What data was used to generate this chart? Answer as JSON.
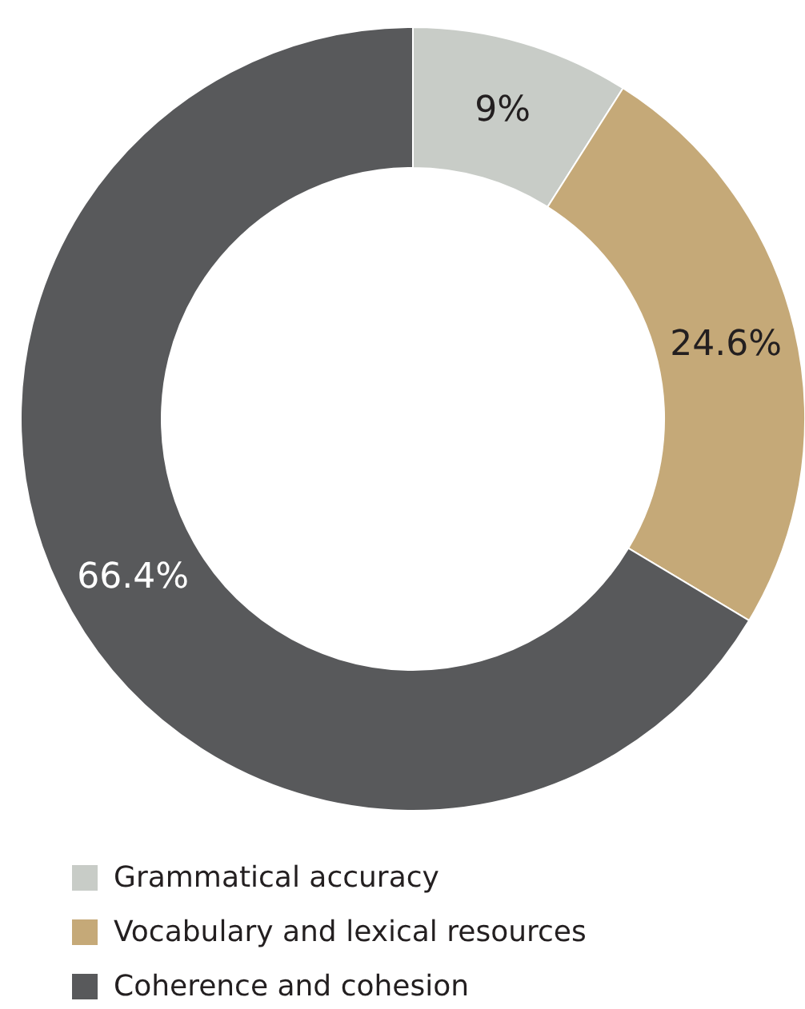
{
  "chart_data": {
    "type": "donut",
    "categories": [
      "Grammatical accuracy",
      "Vocabulary and lexical resources",
      "Coherence and cohesion"
    ],
    "values": [
      9,
      24.6,
      66.4
    ],
    "colors": [
      "#c8ccc7",
      "#c5a978",
      "#58595b"
    ],
    "value_labels": [
      "9%",
      "24.6%",
      "66.4%"
    ],
    "legend": "bottom"
  }
}
